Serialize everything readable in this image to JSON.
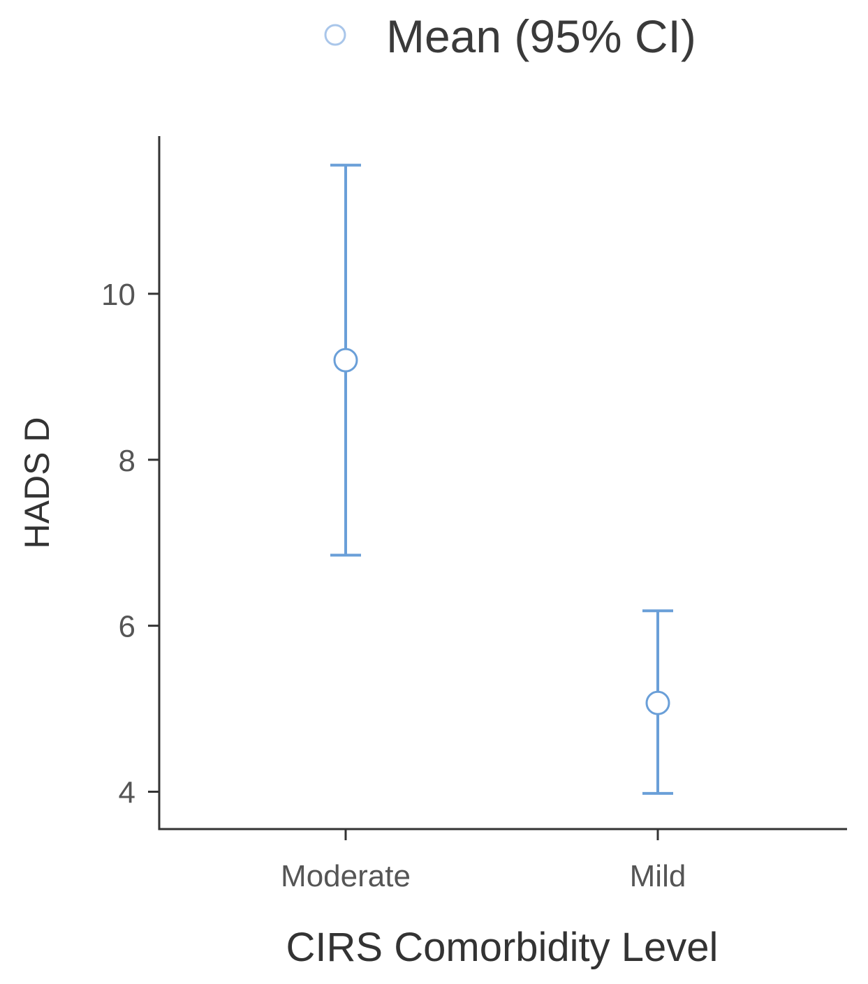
{
  "chart_data": {
    "type": "errorbar",
    "legend": {
      "label": "Mean (95% CI)",
      "placement": "top-center"
    },
    "categories": [
      "Moderate",
      "Mild"
    ],
    "series": [
      {
        "name": "Mean (95% CI)",
        "color": "#6a9fd8",
        "points": [
          {
            "category": "Moderate",
            "mean": 9.2,
            "lower": 6.85,
            "upper": 11.55
          },
          {
            "category": "Mild",
            "mean": 5.07,
            "lower": 3.98,
            "upper": 6.18
          }
        ]
      }
    ],
    "xlabel": "CIRS Comorbidity Level",
    "ylabel": "HADS D",
    "yticks": [
      "4",
      "6",
      "8",
      "10"
    ],
    "ytick_values": [
      4,
      6,
      8,
      10
    ],
    "ylim": [
      3.55,
      11.9
    ],
    "grid": false
  }
}
